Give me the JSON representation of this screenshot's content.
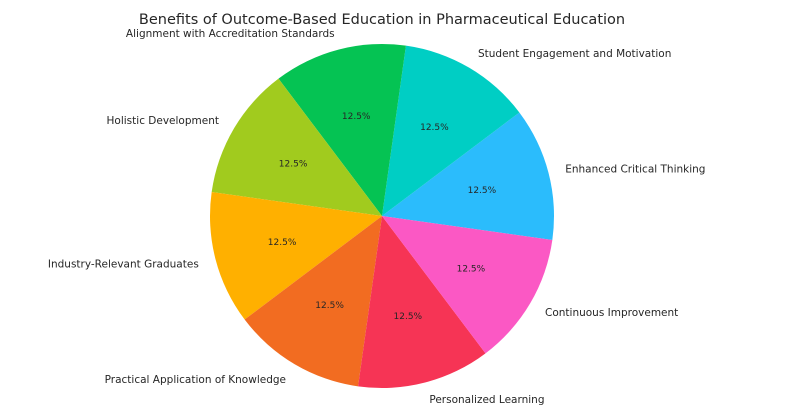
{
  "chart_data": {
    "type": "pie",
    "title": "Benefits of Outcome-Based Education in Pharmaceutical Education",
    "slices": [
      {
        "label": "Enhanced Critical Thinking",
        "value": 12.5,
        "pct_label": "12.5%",
        "color": "#2bbcfc"
      },
      {
        "label": "Student Engagement and Motivation",
        "value": 12.5,
        "pct_label": "12.5%",
        "color": "#00cec4"
      },
      {
        "label": "Alignment with Accreditation Standards",
        "value": 12.5,
        "pct_label": "12.5%",
        "color": "#05c353"
      },
      {
        "label": "Holistic Development",
        "value": 12.5,
        "pct_label": "12.5%",
        "color": "#a1cb1e"
      },
      {
        "label": "Industry-Relevant Graduates",
        "value": 12.5,
        "pct_label": "12.5%",
        "color": "#ffb000"
      },
      {
        "label": "Practical Application of Knowledge",
        "value": 12.5,
        "pct_label": "12.5%",
        "color": "#f26c21"
      },
      {
        "label": "Personalized Learning",
        "value": 12.5,
        "pct_label": "12.5%",
        "color": "#f63455"
      },
      {
        "label": "Continuous Improvement",
        "value": 12.5,
        "pct_label": "12.5%",
        "color": "#fb58c4"
      }
    ]
  }
}
